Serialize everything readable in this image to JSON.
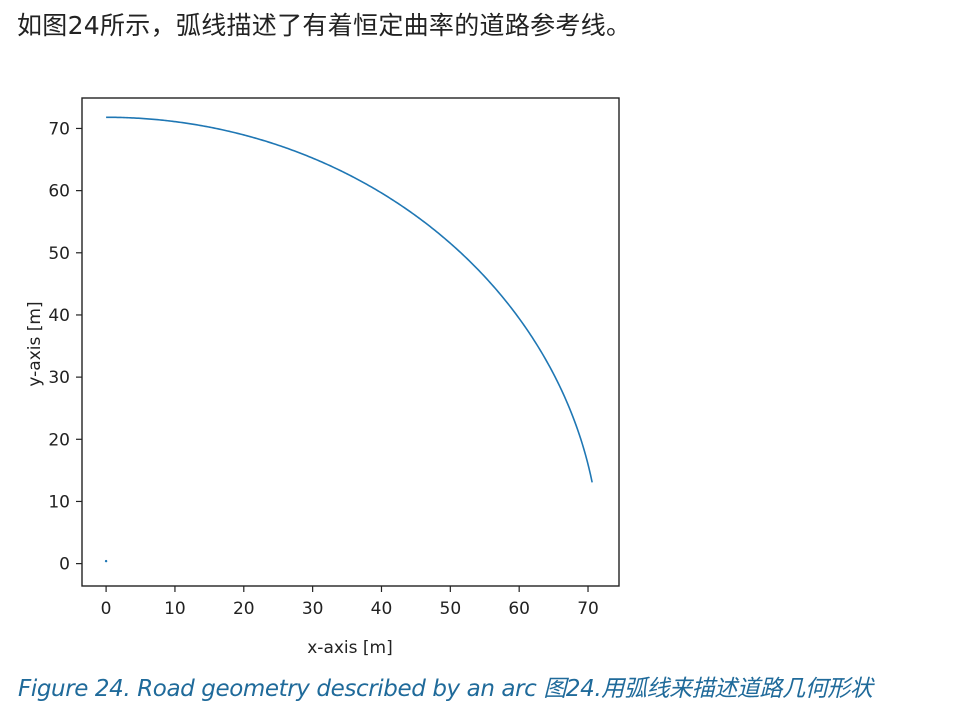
{
  "intro": {
    "text": "如图24所示，弧线描述了有着恒定曲率的道路参考线。"
  },
  "caption": {
    "text": "Figure 24. Road geometry described by an arc 图24.用弧线来描述道路几何形状"
  },
  "chart_data": {
    "type": "line",
    "title": "",
    "xlabel": "x-axis [m]",
    "ylabel": "y-axis [m]",
    "xlim": [
      -3.5,
      74.5
    ],
    "ylim": [
      -3.6,
      74.9
    ],
    "xticks": [
      0,
      10,
      20,
      30,
      40,
      50,
      60,
      70
    ],
    "yticks": [
      0,
      10,
      20,
      30,
      40,
      50,
      60,
      70
    ],
    "grid": false,
    "legend": "none",
    "series": [
      {
        "color": "#1f77b4",
        "arc": {
          "center": [
            0,
            0
          ],
          "radius": 71.8,
          "start_x": 0,
          "end_x": 70.6
        },
        "x": [
          0,
          5,
          10,
          15,
          20,
          25,
          30,
          35,
          40,
          45,
          50,
          55,
          60,
          62,
          64,
          66,
          68,
          69,
          70,
          70.6
        ],
        "y": [
          71.8,
          71.6,
          71.1,
          70.2,
          69.0,
          67.3,
          65.2,
          62.7,
          59.6,
          55.9,
          51.5,
          46.2,
          39.4,
          36.1,
          32.5,
          28.2,
          23.0,
          19.9,
          15.9,
          12.8
        ]
      },
      {
        "color": "#1f77b4",
        "marker": "point",
        "x": [
          0
        ],
        "y": [
          0.4
        ]
      }
    ]
  }
}
